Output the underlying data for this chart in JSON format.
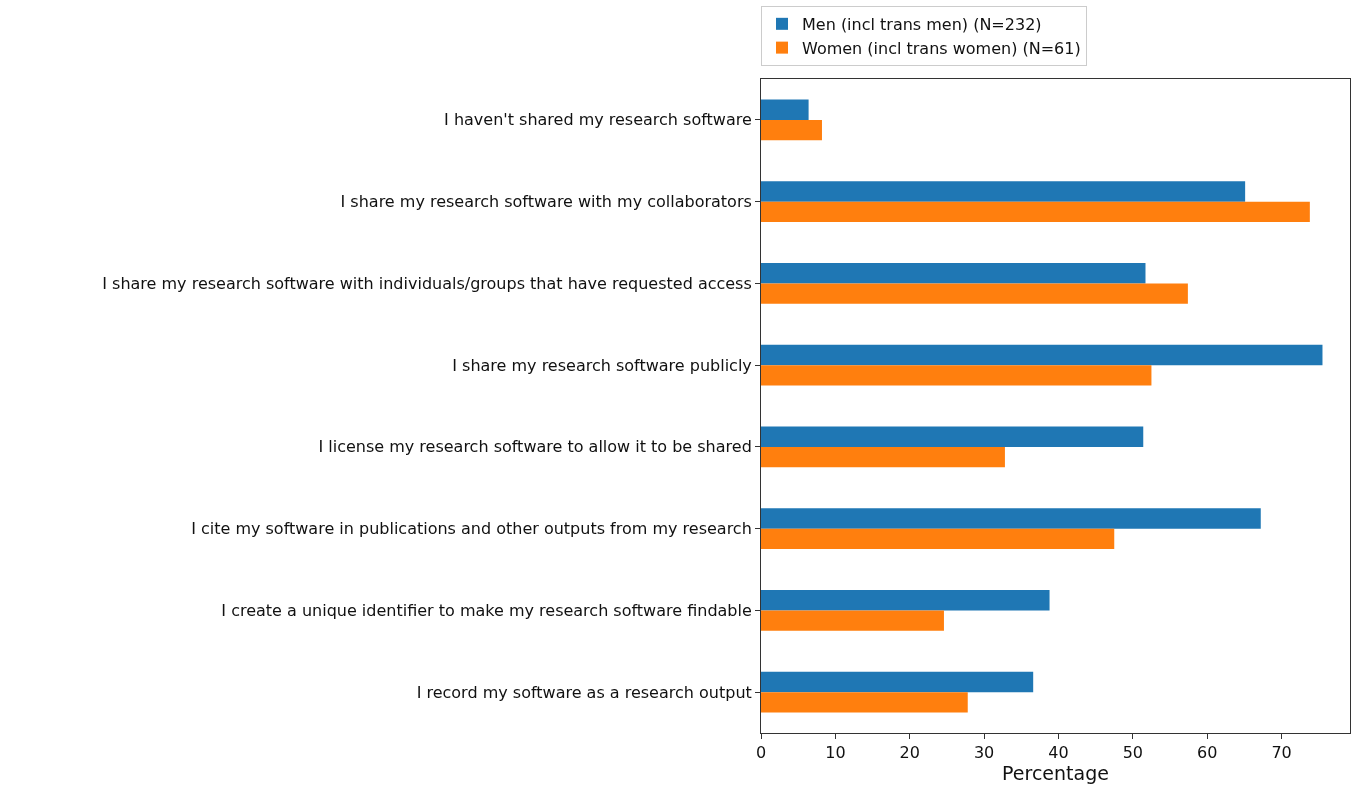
{
  "chart_data": {
    "type": "bar",
    "orientation": "horizontal",
    "xlabel": "Percentage",
    "categories": [
      "I haven't shared my research software",
      "I share my research software with my collaborators",
      "I share my research software with individuals/groups that have requested access",
      "I share my research software publicly",
      "I license my research software to allow it to be shared",
      "I cite my software in publications and other outputs from my research",
      "I create a unique identifier to make my research software findable",
      "I record my software as a research output"
    ],
    "series": [
      {
        "name": "Men (incl trans men) (N=232)",
        "color": "#1f77b4",
        "values": [
          6.4,
          65.1,
          51.7,
          75.5,
          51.4,
          67.2,
          38.8,
          36.6
        ]
      },
      {
        "name": "Women (incl trans women) (N=61)",
        "color": "#ff7f0e",
        "values": [
          8.2,
          73.8,
          57.4,
          52.5,
          32.8,
          47.5,
          24.6,
          27.8
        ]
      }
    ],
    "xlim": [
      0,
      79.2
    ],
    "xticks": [
      0,
      10,
      20,
      30,
      40,
      50,
      60,
      70
    ],
    "grid": false,
    "legend": "top"
  }
}
